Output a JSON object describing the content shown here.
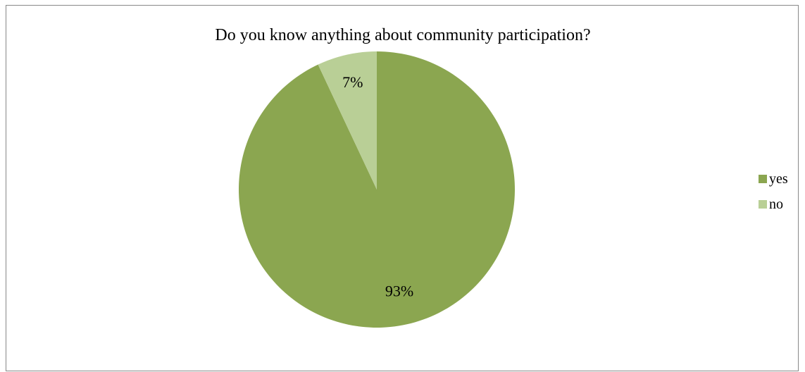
{
  "chart_data": {
    "type": "pie",
    "title": "Do you know anything about community participation?",
    "slices": [
      {
        "label": "yes",
        "value": 93,
        "display": "93%",
        "color": "#8ba650"
      },
      {
        "label": "no",
        "value": 7,
        "display": "7%",
        "color": "#b9cf96"
      }
    ],
    "legend_position": "right"
  }
}
